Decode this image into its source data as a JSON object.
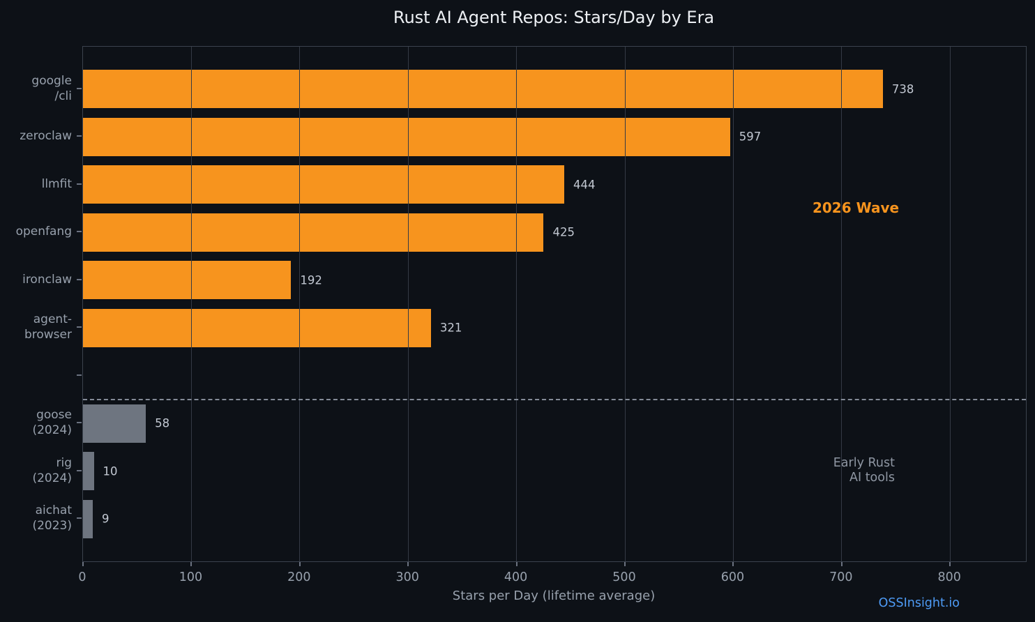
{
  "chart_data": {
    "type": "bar",
    "orientation": "horizontal",
    "title": "Rust AI Agent Repos: Stars/Day by Era",
    "xlabel": "Stars per Day (lifetime average)",
    "xlim": [
      0,
      870
    ],
    "xticks": [
      0,
      100,
      200,
      300,
      400,
      500,
      600,
      700,
      800
    ],
    "grid": "vertical",
    "legend_position": "none",
    "rows": [
      {
        "label": "google\n/cli",
        "value": 738,
        "group": "wave2026"
      },
      {
        "label": "zeroclaw",
        "value": 597,
        "group": "wave2026"
      },
      {
        "label": "llmfit",
        "value": 444,
        "group": "wave2026"
      },
      {
        "label": "openfang",
        "value": 425,
        "group": "wave2026"
      },
      {
        "label": "ironclaw",
        "value": 192,
        "group": "wave2026"
      },
      {
        "label": "agent-\nbrowser",
        "value": 321,
        "group": "wave2026"
      },
      {
        "label": "",
        "value": null,
        "group": null
      },
      {
        "label": "goose\n(2024)",
        "value": 58,
        "group": "early"
      },
      {
        "label": "rig\n(2024)",
        "value": 10,
        "group": "early"
      },
      {
        "label": "aichat\n(2023)",
        "value": 9,
        "group": "early"
      }
    ],
    "groups": {
      "wave2026": {
        "name": "2026 Wave",
        "color": "#f7941e"
      },
      "early": {
        "name": "Early Rust AI tools",
        "color": "#6e7580"
      }
    },
    "separator": {
      "after_row_boundary": 6.5,
      "style": "dashed"
    },
    "annotations": [
      {
        "text": "2026 Wave",
        "color": "#f7941e",
        "bold": true,
        "x": 713,
        "row": 2.49,
        "align": "center"
      },
      {
        "text": "Early Rust\nAI tools",
        "color": "#8f97a3",
        "bold": false,
        "x": 749,
        "row": 7.99,
        "align": "right"
      }
    ]
  },
  "footer": {
    "watermark": "OSSInsight.io"
  },
  "colors": {
    "background": "#0d1117",
    "grid": "#343a45",
    "plot_border": "#3c434e",
    "tick": "#6b7280",
    "title_text": "#edf0f4",
    "axis_text": "#98a1ad",
    "value_text": "#c3c9d3",
    "watermark_blue": "#4e9bf5",
    "separator": "#848b97"
  }
}
